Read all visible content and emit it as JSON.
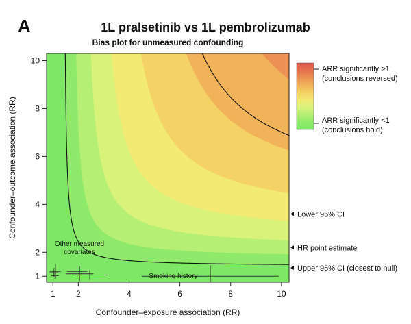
{
  "panel_label": "A",
  "chart_data": {
    "type": "heatmap",
    "title": "1L pralsetinib vs 1L pembrolizumab",
    "subtitle": "Bias plot for unmeasured confounding",
    "xlabel": "Confounder–exposure association (RR)",
    "ylabel": "Confounder–outcome association (RR)",
    "xlim": [
      0.75,
      10.3
    ],
    "ylim": [
      0.75,
      10.3
    ],
    "x_ticks": [
      "1",
      "2",
      "4",
      "6",
      "8",
      "10"
    ],
    "y_ticks": [
      "1",
      "2",
      "4",
      "6",
      "8",
      "10"
    ],
    "legend": {
      "placement": "right",
      "top_label": [
        "ARR significantly >1",
        "(conclusions reversed)"
      ],
      "bottom_label": [
        "ARR significantly <1",
        "(conclusions hold)"
      ],
      "colors": [
        "#e05a4d",
        "#e4724e",
        "#eb9153",
        "#f1b35a",
        "#f4d265",
        "#f2ea73",
        "#d8f27a",
        "#b5ef74",
        "#8fea6b",
        "#7ee866"
      ]
    },
    "reference_lines": [
      {
        "label": "Lower 95% CI",
        "threshold": 7.87,
        "y_at_x10": 3.6
      },
      {
        "label": "HR point estimate",
        "threshold": 4.38,
        "y_at_x10": 2.2
      },
      {
        "label": "Upper 95% CI (closest to null)",
        "threshold": 1.42,
        "y_at_x10": 1.35
      }
    ],
    "annotations": [
      {
        "text": "Other measured covariates",
        "x": 1.75,
        "y": 2.05
      },
      {
        "text": "Smoking history",
        "x": 5.7,
        "y": 0.95
      }
    ],
    "covariate_points": [
      {
        "x": 1.04,
        "y": 1.15,
        "x_err": 0.18,
        "y_err": 0.2
      },
      {
        "x": 1.08,
        "y": 1.02,
        "x_err": 0.15,
        "y_err": 0.12
      },
      {
        "x": 1.1,
        "y": 1.2,
        "x_err": 0.22,
        "y_err": 0.3
      },
      {
        "x": 1.95,
        "y": 1.2,
        "x_err": 0.4,
        "y_err": 0.25
      },
      {
        "x": 2.05,
        "y": 1.1,
        "x_err": 0.55,
        "y_err": 0.3
      },
      {
        "x": 2.45,
        "y": 1.05,
        "x_err": 0.7,
        "y_err": 0.2
      },
      {
        "x": 7.2,
        "y": 1.0,
        "x_err": 2.7,
        "y_err": 0.45
      }
    ]
  }
}
